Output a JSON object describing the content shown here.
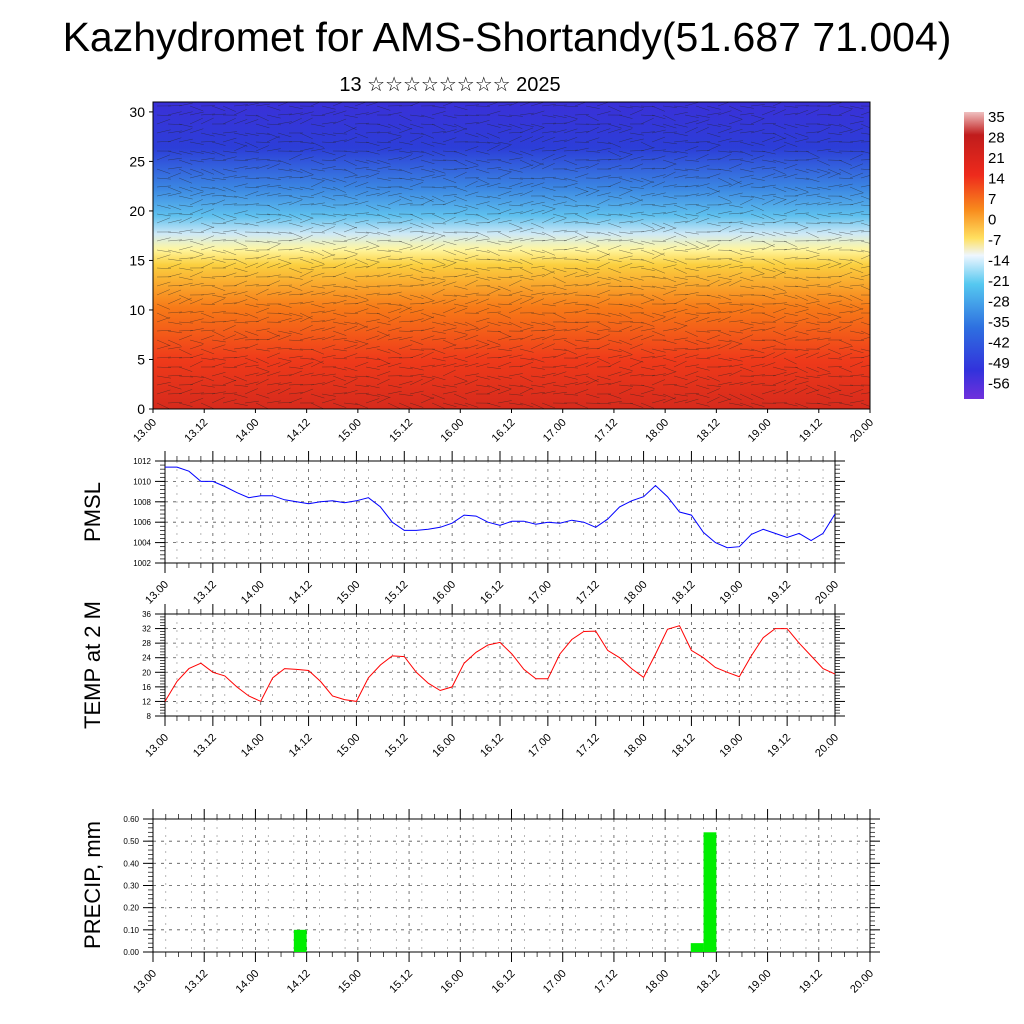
{
  "title": "Kazhydromet for AMS-Shortandy(51.687 71.004)",
  "subtitle": "13 ☆☆☆☆☆☆☆☆ 2025",
  "time_ticks": [
    "13.00",
    "13.12",
    "14.00",
    "14.12",
    "15.00",
    "15.12",
    "16.00",
    "16.12",
    "17.00",
    "17.12",
    "18.00",
    "18.12",
    "19.00",
    "19.12",
    "20.00"
  ],
  "chart_data": [
    {
      "type": "heatmap",
      "ylim": [
        0,
        31
      ],
      "y_ticks": [
        "0",
        "5",
        "10",
        "15",
        "20",
        "25",
        "30"
      ],
      "colorbar_labels": [
        "35",
        "28",
        "21",
        "14",
        "7",
        "0",
        "-7",
        "-14",
        "-21",
        "-28",
        "-35",
        "-42",
        "-49",
        "-56"
      ],
      "colors": {
        "35": "#e9b9b9",
        "28": "#b01818",
        "21": "#d82020",
        "14": "#ee2a1c",
        "7": "#f66a1a",
        "0": "#fbac2a",
        "-7": "#fff17a",
        "-14": "#cfe9f6",
        "-21": "#55c8f0",
        "-28": "#2c9fe6",
        "-35": "#2e70e0",
        "-42": "#2c4fdc",
        "-49": "#3232dc",
        "-56": "#7030dc"
      },
      "description_levels_x": [
        0,
        0.5,
        1,
        1.5,
        2,
        2.5,
        3,
        3.5,
        4,
        4.5,
        5,
        5.5,
        6,
        6.5,
        7
      ],
      "level_temps": [
        {
          "height": 0,
          "value": 20
        },
        {
          "height": 5,
          "value": 14
        },
        {
          "height": 10,
          "value": 7
        },
        {
          "height": 14,
          "value": 0
        },
        {
          "height": 17,
          "value": -10
        },
        {
          "height": 20,
          "value": -28
        },
        {
          "height": 25,
          "value": -42
        },
        {
          "height": 30,
          "value": -49
        }
      ]
    },
    {
      "type": "line",
      "ylabel": "PMSL",
      "ylim": [
        1002,
        1012
      ],
      "y_ticks": [
        "1002",
        "1004",
        "1006",
        "1008",
        "1010",
        "1012"
      ],
      "color": "#0000ff",
      "x": [
        0,
        0.125,
        0.25,
        0.375,
        0.5,
        0.625,
        0.75,
        0.875,
        1,
        1.125,
        1.25,
        1.375,
        1.5,
        1.625,
        1.75,
        1.875,
        2,
        2.125,
        2.25,
        2.375,
        2.5,
        2.625,
        2.75,
        2.875,
        3,
        3.125,
        3.25,
        3.375,
        3.5,
        3.625,
        3.75,
        3.875,
        4,
        4.125,
        4.25,
        4.375,
        4.5,
        4.625,
        4.75,
        4.875,
        5,
        5.125,
        5.25,
        5.375,
        5.5,
        5.625,
        5.75,
        5.875,
        6,
        6.125,
        6.25,
        6.375,
        6.5,
        6.625,
        6.75,
        6.875,
        7
      ],
      "values": [
        1011.4,
        1011.4,
        1011.0,
        1010.0,
        1010.0,
        1009.5,
        1008.9,
        1008.4,
        1008.6,
        1008.6,
        1008.2,
        1008.0,
        1007.8,
        1008.0,
        1008.1,
        1007.9,
        1008.1,
        1008.4,
        1007.5,
        1006.0,
        1005.2,
        1005.2,
        1005.3,
        1005.5,
        1005.9,
        1006.7,
        1006.6,
        1006.0,
        1005.7,
        1006.1,
        1006.1,
        1005.8,
        1006.0,
        1005.9,
        1006.2,
        1006.0,
        1005.5,
        1006.3,
        1007.5,
        1008.1,
        1008.5,
        1009.6,
        1008.5,
        1007.0,
        1006.7,
        1005.0,
        1004.0,
        1003.5,
        1003.6,
        1004.8,
        1005.3,
        1004.9,
        1004.5,
        1004.9,
        1004.2,
        1004.9,
        1006.8
      ]
    },
    {
      "type": "line",
      "ylabel": "TEMP at 2 M",
      "ylim": [
        8,
        36
      ],
      "y_ticks": [
        "8",
        "12",
        "16",
        "20",
        "24",
        "28",
        "32",
        "36"
      ],
      "color": "#ff0000",
      "x": [
        0,
        0.125,
        0.25,
        0.375,
        0.5,
        0.625,
        0.75,
        0.875,
        1,
        1.125,
        1.25,
        1.375,
        1.5,
        1.625,
        1.75,
        1.875,
        2,
        2.125,
        2.25,
        2.375,
        2.5,
        2.625,
        2.75,
        2.875,
        3,
        3.125,
        3.25,
        3.375,
        3.5,
        3.625,
        3.75,
        3.875,
        4,
        4.125,
        4.25,
        4.375,
        4.5,
        4.625,
        4.75,
        4.875,
        5,
        5.125,
        5.25,
        5.375,
        5.5,
        5.625,
        5.75,
        5.875,
        6,
        6.125,
        6.25,
        6.375,
        6.5,
        6.625,
        6.75,
        6.875,
        7
      ],
      "values": [
        12.0,
        17.5,
        21.0,
        22.5,
        20.0,
        19.0,
        16.0,
        13.5,
        12.0,
        18.5,
        21.0,
        20.8,
        20.5,
        17.5,
        13.5,
        12.5,
        12.0,
        18.5,
        22.0,
        24.5,
        24.3,
        20.0,
        17.0,
        15.0,
        16.0,
        22.5,
        25.5,
        27.5,
        28.2,
        25.0,
        20.8,
        18.2,
        18.2,
        25.0,
        29.0,
        31.2,
        31.3,
        26.0,
        24.0,
        21.0,
        18.6,
        25.0,
        31.8,
        32.8,
        26.0,
        24.0,
        21.3,
        20.0,
        18.8,
        24.5,
        29.5,
        32.0,
        32.0,
        28.0,
        24.5,
        21.0,
        19.5
      ]
    },
    {
      "type": "bar",
      "ylabel": "PRECIP, mm",
      "ylim": [
        0,
        0.6
      ],
      "y_ticks": [
        "0.00",
        "0.10",
        "0.20",
        "0.30",
        "0.40",
        "0.50",
        "0.60"
      ],
      "color": "#00ee00",
      "bars": [
        {
          "x": 1.5,
          "value": 0.1
        },
        {
          "x": 5.375,
          "value": 0.04
        },
        {
          "x": 5.5,
          "value": 0.54
        }
      ]
    }
  ]
}
